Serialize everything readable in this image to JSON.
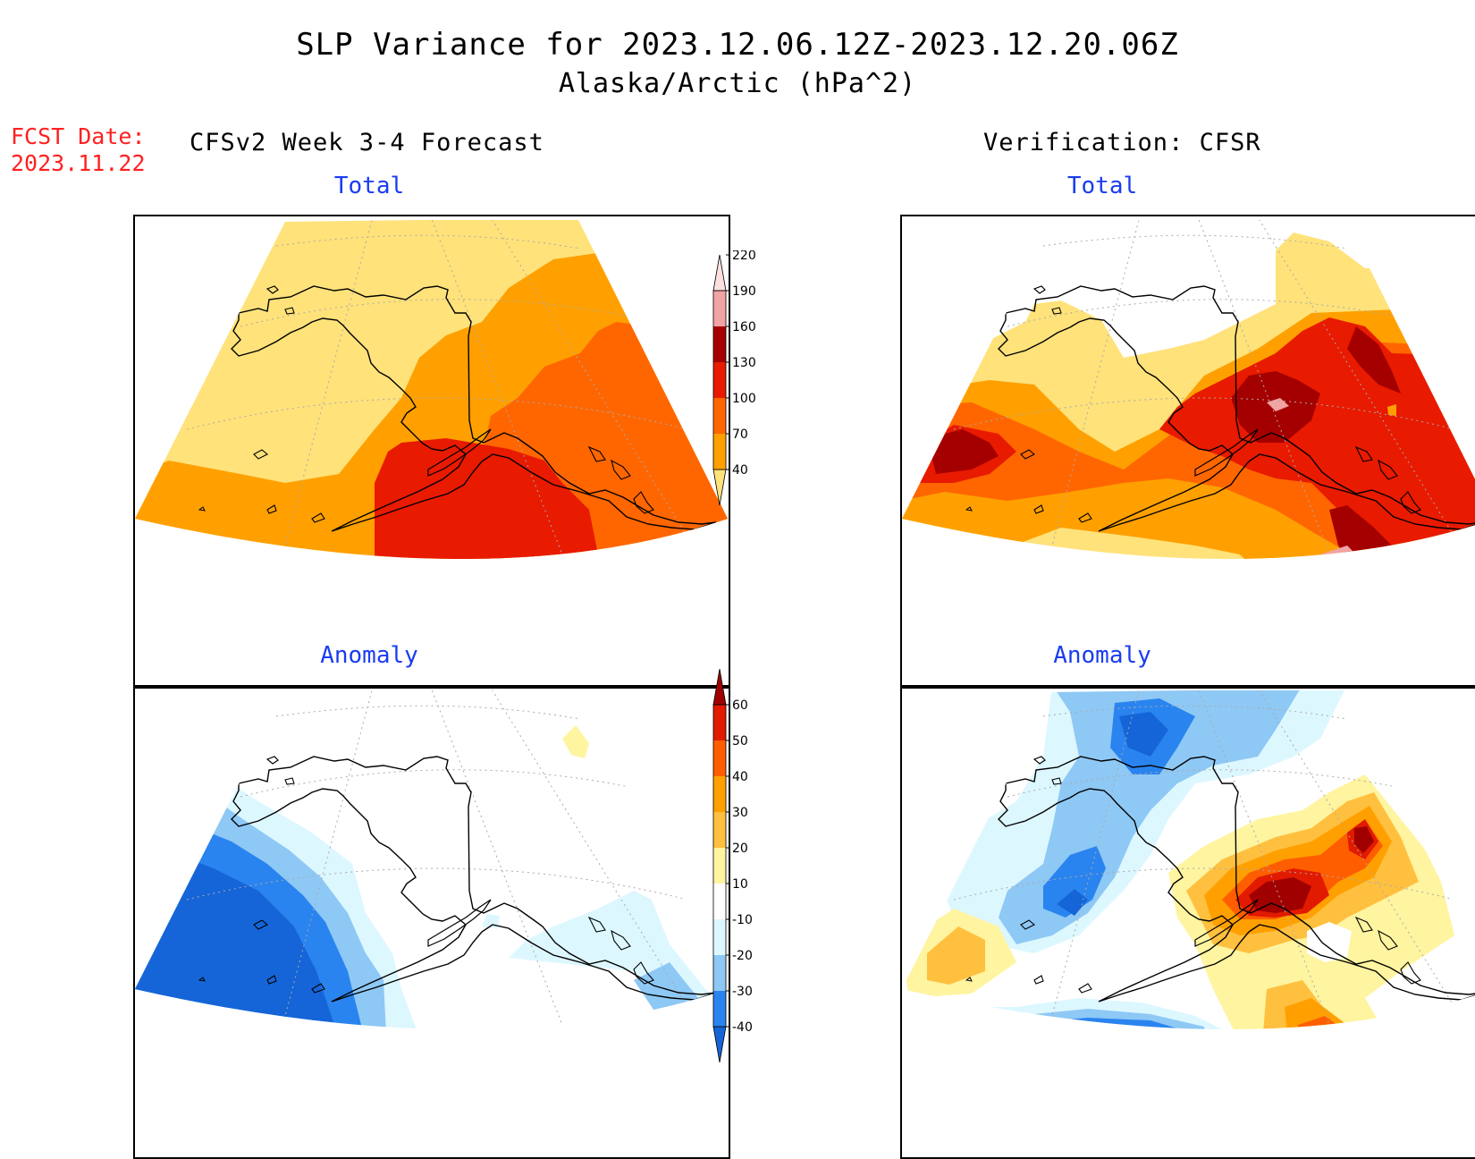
{
  "header": {
    "title": "SLP Variance for 2023.12.06.12Z-2023.12.20.06Z",
    "subtitle": "Alaska/Arctic (hPa^2)",
    "fcst_label": "FCST Date:",
    "fcst_date": "2023.11.22",
    "left_heading": "CFSv2 Week 3-4 Forecast",
    "right_heading": "Verification: CFSR"
  },
  "panels": {
    "top_left_title": "Total",
    "top_right_title": "Total",
    "bottom_left_title": "Anomaly",
    "bottom_right_title": "Anomaly"
  },
  "colorbars": {
    "total": {
      "labels": [
        "40",
        "70",
        "100",
        "130",
        "160",
        "190",
        "220"
      ],
      "colors": [
        "#ffe27a",
        "#ffa000",
        "#ff6600",
        "#e81a00",
        "#a50000",
        "#f2a3a3",
        "#ffe0e0"
      ]
    },
    "anomaly": {
      "labels": [
        "-40",
        "-30",
        "-20",
        "-10",
        "10",
        "20",
        "30",
        "40",
        "50",
        "60"
      ],
      "colors": [
        "#1565d8",
        "#2a84ef",
        "#8ec8f5",
        "#ddf7ff",
        "#ffffff",
        "#fff4a0",
        "#ffc040",
        "#ffa000",
        "#ff5e00",
        "#e11a00",
        "#a00000"
      ]
    }
  },
  "palette": {
    "total": {
      "c40": "#ffe27a",
      "c70": "#ffa000",
      "c100": "#ff6600",
      "c130": "#e81a00",
      "c160": "#a50000",
      "c190": "#f2a3a3"
    },
    "anomaly": {
      "n40": "#1565d8",
      "n30": "#2a84ef",
      "n20": "#8ec8f5",
      "n10": "#ddf7ff",
      "p10": "#fff4a0",
      "p20": "#ffc040",
      "p30": "#ffa000",
      "p40": "#ff5e00",
      "p50": "#e11a00",
      "p60": "#a00000"
    }
  }
}
